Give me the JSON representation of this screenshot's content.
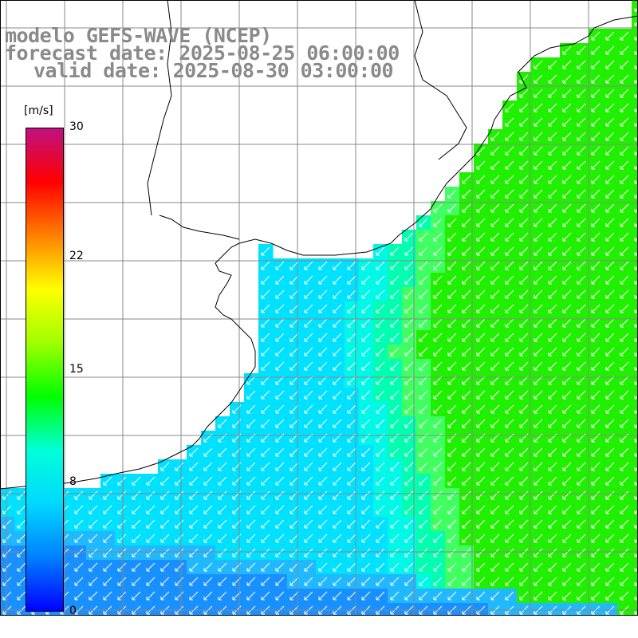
{
  "title": {
    "line1": "modelo GEFS-WAVE (NCEP)",
    "line2": "forecast date: 2025-08-25 06:00:00",
    "line3": "valid date: 2025-08-30 03:00:00"
  },
  "colorbar": {
    "units": "[m/s]",
    "min": 0,
    "max": 30,
    "ticks": [
      {
        "label": "30",
        "value": 30
      },
      {
        "label": "22",
        "value": 22
      },
      {
        "label": "15",
        "value": 15
      },
      {
        "label": "8",
        "value": 8
      },
      {
        "label": "0",
        "value": 0
      }
    ],
    "colors": [
      "#0000ff",
      "#0080ff",
      "#00d8ff",
      "#00ffd8",
      "#00ff00",
      "#a0ff00",
      "#ffff00",
      "#ff8000",
      "#ff0000",
      "#c01080"
    ]
  },
  "map_colors": {
    "land": "#ffffff",
    "grid": "#888888",
    "coast": "#000000",
    "arrow": "#ffffff"
  },
  "wind": {
    "direction": "from northeast",
    "approx_range_ms": [
      4,
      12
    ]
  }
}
